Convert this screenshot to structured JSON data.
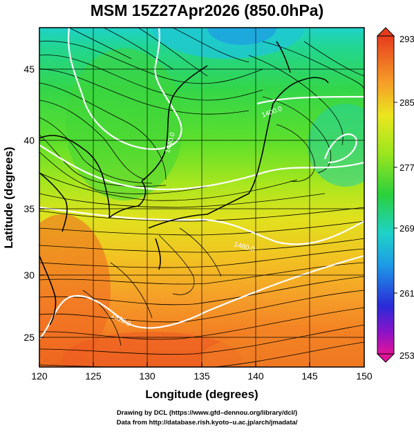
{
  "title": "MSM 15Z27Apr2026 (850.0hPa)",
  "axes": {
    "xlabel": "Longitude (degrees)",
    "ylabel": "Latitude  (degrees)",
    "xlim": [
      120,
      150
    ],
    "ylim": [
      22.5,
      47.5
    ],
    "xticks": [
      "120",
      "125",
      "130",
      "135",
      "140",
      "145",
      "150"
    ],
    "yticks": [
      "25",
      "30",
      "35",
      "40",
      "45"
    ]
  },
  "colorbar": {
    "labels": [
      "293",
      "285",
      "277",
      "269",
      "261",
      "253"
    ],
    "range": [
      253,
      293
    ],
    "colors": [
      "#e0149a",
      "#8a14c8",
      "#2a2ad8",
      "#1e9be6",
      "#1ed2c8",
      "#2ad03c",
      "#9be61e",
      "#ebe61e",
      "#f5a028",
      "#e63c1e"
    ]
  },
  "contours": [
    {
      "label": "1400.0",
      "value": 1400
    },
    {
      "label": "1440.0",
      "value": 1440
    },
    {
      "label": "1480.0",
      "value": 1480
    },
    {
      "label": "1520.0",
      "value": 1520
    }
  ],
  "credits": {
    "line1": "Drawing by DCL (https://www.gfd–dennou.org/library/dcl/)",
    "line2": "Data from http://database.rish.kyoto–u.ac.jp/arch/jmadata/"
  }
}
